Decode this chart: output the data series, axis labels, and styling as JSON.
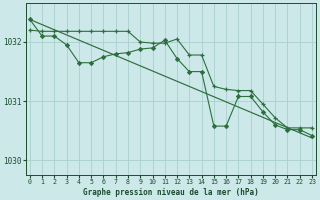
{
  "title": "Graphe pression niveau de la mer (hPa)",
  "bg_color": "#cce8e8",
  "grid_color": "#aad0d0",
  "line_color": "#2d6e3e",
  "text_color": "#1a4d2e",
  "xlim": [
    -0.3,
    23.3
  ],
  "ylim": [
    1029.75,
    1032.65
  ],
  "yticks": [
    1030,
    1031,
    1032
  ],
  "xticks": [
    0,
    1,
    2,
    3,
    4,
    5,
    6,
    7,
    8,
    9,
    10,
    11,
    12,
    13,
    14,
    15,
    16,
    17,
    18,
    19,
    20,
    21,
    22,
    23
  ],
  "line1_x": [
    0,
    1,
    2,
    3,
    4,
    5,
    6,
    7,
    8,
    9,
    10,
    11,
    12,
    13,
    14,
    15,
    16,
    17,
    18,
    19,
    20,
    21,
    22,
    23
  ],
  "line1_y": [
    1032.38,
    1032.1,
    1032.1,
    1031.95,
    1031.65,
    1031.65,
    1031.75,
    1031.8,
    1031.82,
    1031.88,
    1031.9,
    1032.03,
    1031.72,
    1031.5,
    1031.5,
    1030.58,
    1030.58,
    1031.08,
    1031.08,
    1030.82,
    1030.6,
    1030.52,
    1030.52,
    1030.42
  ],
  "line2_x": [
    0,
    1,
    2,
    3,
    4,
    5,
    6,
    7,
    8,
    9,
    10,
    11,
    12,
    13,
    14,
    15,
    16,
    17,
    18,
    19,
    20,
    21,
    22,
    23
  ],
  "line2_y": [
    1032.2,
    1032.18,
    1032.18,
    1032.18,
    1032.18,
    1032.18,
    1032.18,
    1032.18,
    1032.18,
    1032.0,
    1031.98,
    1031.98,
    1032.05,
    1031.78,
    1031.78,
    1031.25,
    1031.2,
    1031.18,
    1031.18,
    1030.95,
    1030.72,
    1030.55,
    1030.55,
    1030.55
  ],
  "line3_x": [
    0,
    23
  ],
  "line3_y": [
    1032.38,
    1030.38
  ]
}
